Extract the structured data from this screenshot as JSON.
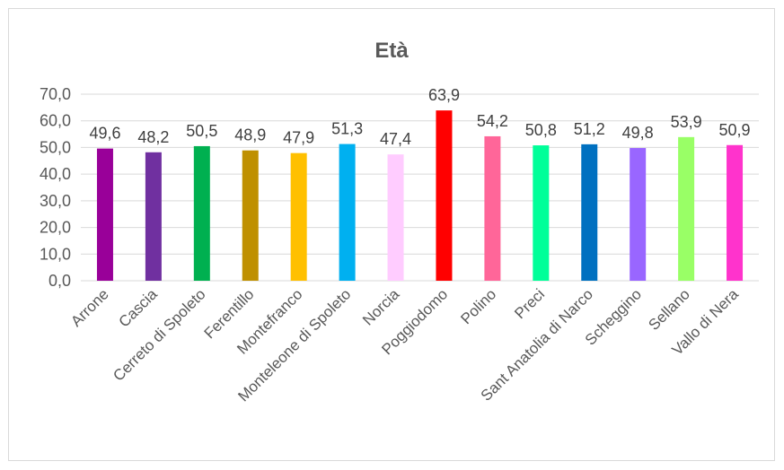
{
  "chart_data": {
    "type": "bar",
    "title": "Età",
    "xlabel": "",
    "ylabel": "",
    "ylim": [
      0,
      70
    ],
    "yticks": [
      "0,0",
      "10,0",
      "20,0",
      "30,0",
      "40,0",
      "50,0",
      "60,0",
      "70,0"
    ],
    "grid": true,
    "legend": "none",
    "categories": [
      "Arrone",
      "Cascia",
      "Cerreto di Spoleto",
      "Ferentillo",
      "Montefranco",
      "Monteleone di Spoleto",
      "Norcia",
      "Poggiodomo",
      "Polino",
      "Preci",
      "Sant Anatolia di Narco",
      "Scheggino",
      "Sellano",
      "Vallo di Nera"
    ],
    "values": [
      49.6,
      48.2,
      50.5,
      48.9,
      47.9,
      51.3,
      47.4,
      63.9,
      54.2,
      50.8,
      51.2,
      49.8,
      53.9,
      50.9
    ],
    "value_labels": [
      "49,6",
      "48,2",
      "50,5",
      "48,9",
      "47,9",
      "51,3",
      "47,4",
      "63,9",
      "54,2",
      "50,8",
      "51,2",
      "49,8",
      "53,9",
      "50,9"
    ],
    "colors": [
      "#990099",
      "#7030a0",
      "#00b050",
      "#bf9000",
      "#ffc000",
      "#00b0f0",
      "#ffccff",
      "#ff0000",
      "#ff6699",
      "#00ff99",
      "#0070c0",
      "#9966ff",
      "#99ff66",
      "#ff33cc"
    ]
  }
}
